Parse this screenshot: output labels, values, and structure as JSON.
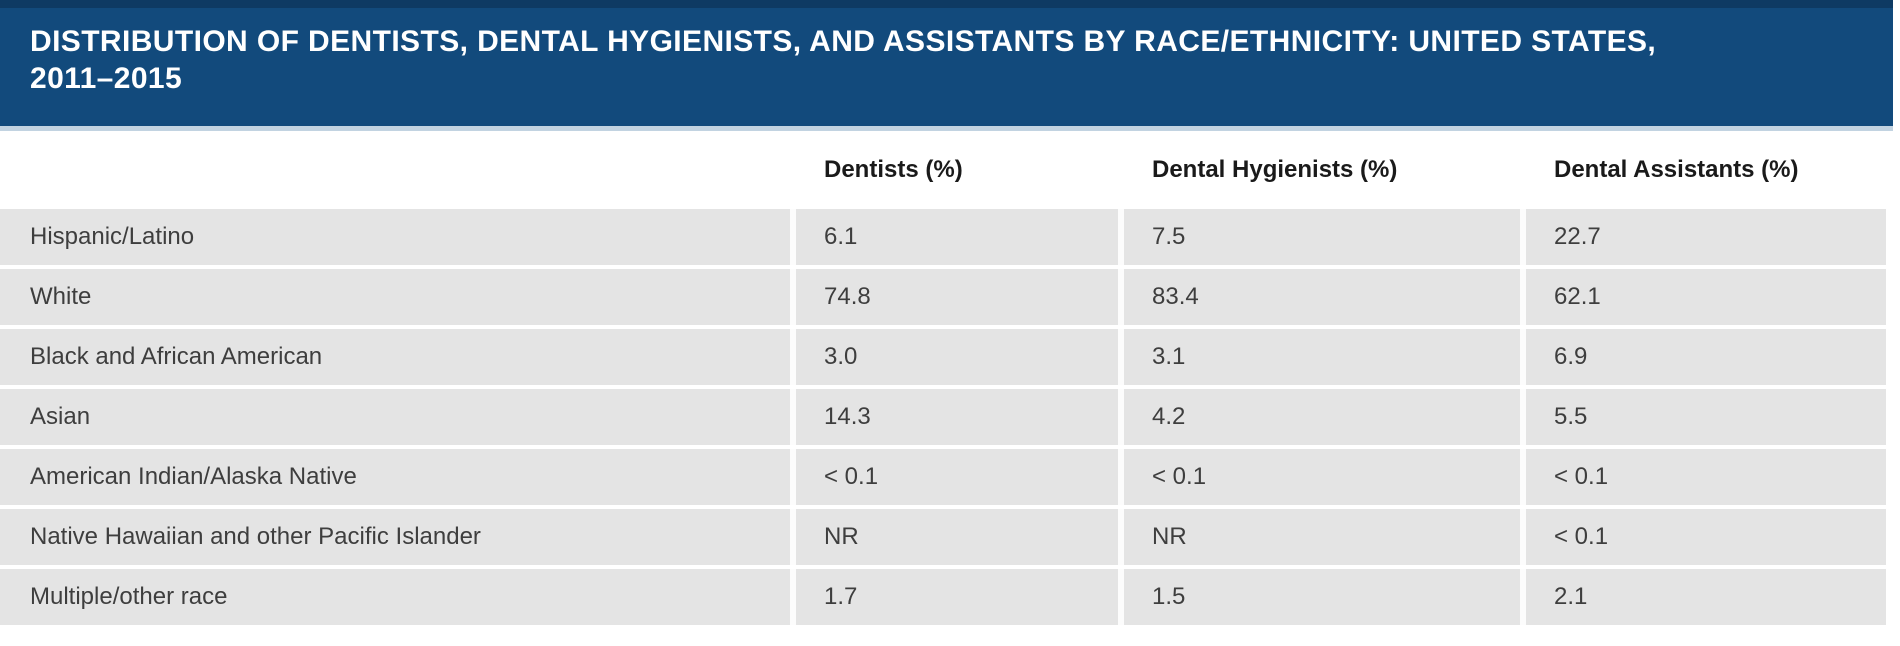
{
  "header": {
    "title_lines": [
      "DISTRIBUTION OF DENTISTS, DENTAL HYGIENISTS, AND ASSISTANTS BY RACE/ETHNICITY: UNITED STATES,",
      "2011–2015"
    ],
    "bg_color": "#124a7c",
    "top_border_color": "#0e3a63",
    "bottom_border_color": "#c2d3e1",
    "text_color": "#ffffff"
  },
  "table_style": {
    "row_bg_color": "#e4e4e4",
    "divider_color": "#fcfcfc",
    "header_text_color": "#1a1a1a",
    "cell_text_color": "#3e3e3e"
  },
  "chart_data": {
    "type": "table",
    "title": "DISTRIBUTION OF DENTISTS, DENTAL HYGIENISTS, AND ASSISTANTS BY RACE/ETHNICITY: UNITED STATES, 2011–2015",
    "columns": [
      "",
      "Dentists (%)",
      "Dental Hygienists (%)",
      "Dental Assistants (%)"
    ],
    "rows": [
      {
        "label": "Hispanic/Latino",
        "values": [
          "6.1",
          "7.5",
          "22.7"
        ]
      },
      {
        "label": "White",
        "values": [
          "74.8",
          "83.4",
          "62.1"
        ]
      },
      {
        "label": "Black and African American",
        "values": [
          "3.0",
          "3.1",
          "6.9"
        ]
      },
      {
        "label": "Asian",
        "values": [
          "14.3",
          "4.2",
          "5.5"
        ]
      },
      {
        "label": "American Indian/Alaska Native",
        "values": [
          "< 0.1",
          "< 0.1",
          "< 0.1"
        ]
      },
      {
        "label": "Native Hawaiian and other Pacific Islander",
        "values": [
          "NR",
          "NR",
          "< 0.1"
        ]
      },
      {
        "label": "Multiple/other race",
        "values": [
          "1.7",
          "1.5",
          "2.1"
        ]
      }
    ]
  }
}
